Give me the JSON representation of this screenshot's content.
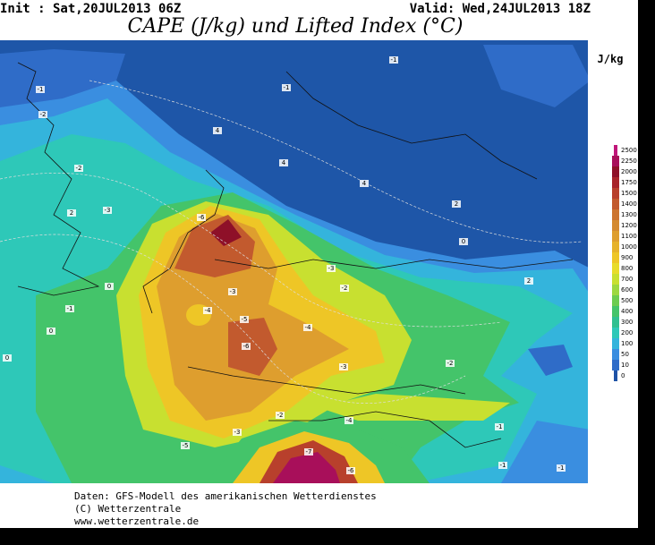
{
  "header": {
    "init": "Init : Sat,20JUL2013 06Z",
    "valid": "Valid: Wed,24JUL2013 18Z",
    "title": "CAPE (J/kg) und Lifted Index (°C)"
  },
  "legend": {
    "unit": "J/kg",
    "levels": [
      2500,
      2250,
      2000,
      1750,
      1500,
      1400,
      1300,
      1200,
      1100,
      1000,
      900,
      800,
      700,
      600,
      500,
      400,
      300,
      200,
      100,
      50,
      10,
      0
    ],
    "colors": [
      "#c0167a",
      "#a80f5a",
      "#8e1028",
      "#a8242a",
      "#b8402c",
      "#c25a2e",
      "#cc7430",
      "#d48a30",
      "#de9e2e",
      "#e6b22a",
      "#eec626",
      "#e8dc2a",
      "#c8e030",
      "#9cd840",
      "#6ccc50",
      "#44c46a",
      "#30c090",
      "#2ec8b8",
      "#34b4dc",
      "#3a8ee0",
      "#2f6cc8",
      "#1e52a6"
    ]
  },
  "contour_labels": [
    "-1",
    "-1",
    "-2",
    "-1",
    "-2",
    "-3",
    "2",
    "0",
    "-1",
    "0",
    "0",
    "4",
    "4",
    "4",
    "2",
    "-3",
    "-6",
    "-4",
    "-5",
    "-6",
    "-4",
    "-3",
    "-2",
    "-3",
    "-2",
    "-3",
    "-5",
    "-4",
    "-7",
    "-6",
    "-2",
    "-1",
    "0",
    "-1",
    "-1",
    "2"
  ],
  "footer": {
    "line1": "Daten: GFS-Modell des amerikanischen Wetterdienstes",
    "line2": "(C) Wetterzentrale",
    "line3": "www.wetterzentrale.de"
  }
}
